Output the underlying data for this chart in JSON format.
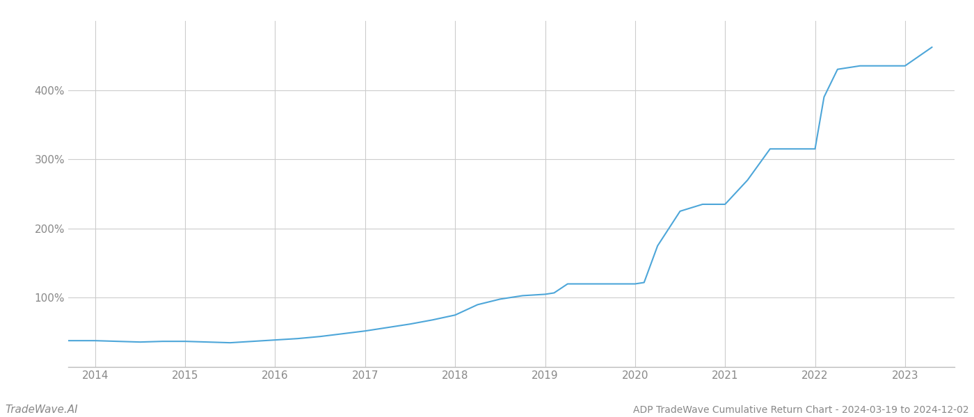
{
  "title": "ADP TradeWave Cumulative Return Chart - 2024-03-19 to 2024-12-02",
  "watermark": "TradeWave.AI",
  "line_color": "#4da6d9",
  "background_color": "#ffffff",
  "grid_color": "#cccccc",
  "x_years": [
    2014,
    2015,
    2016,
    2017,
    2018,
    2019,
    2020,
    2021,
    2022,
    2023
  ],
  "x_values": [
    2013.7,
    2014.0,
    2014.25,
    2014.5,
    2014.75,
    2015.0,
    2015.25,
    2015.5,
    2015.75,
    2016.0,
    2016.25,
    2016.5,
    2016.75,
    2017.0,
    2017.25,
    2017.5,
    2017.75,
    2018.0,
    2018.25,
    2018.5,
    2018.75,
    2019.0,
    2019.1,
    2019.25,
    2019.5,
    2019.75,
    2020.0,
    2020.1,
    2020.25,
    2020.5,
    2020.75,
    2021.0,
    2021.25,
    2021.5,
    2021.75,
    2022.0,
    2022.1,
    2022.25,
    2022.5,
    2022.75,
    2023.0,
    2023.3
  ],
  "y_values": [
    38,
    38,
    37,
    36,
    37,
    37,
    36,
    35,
    37,
    39,
    41,
    44,
    48,
    52,
    57,
    62,
    68,
    75,
    90,
    98,
    103,
    105,
    107,
    120,
    120,
    120,
    120,
    122,
    175,
    225,
    235,
    235,
    270,
    315,
    315,
    315,
    390,
    430,
    435,
    435,
    435,
    462
  ],
  "yticks": [
    100,
    200,
    300,
    400
  ],
  "ylim": [
    0,
    500
  ],
  "xlim": [
    2013.7,
    2023.55
  ],
  "title_fontsize": 10,
  "watermark_fontsize": 11,
  "tick_fontsize": 11,
  "axis_color": "#888888",
  "spine_color": "#bbbbbb",
  "line_width": 1.5
}
